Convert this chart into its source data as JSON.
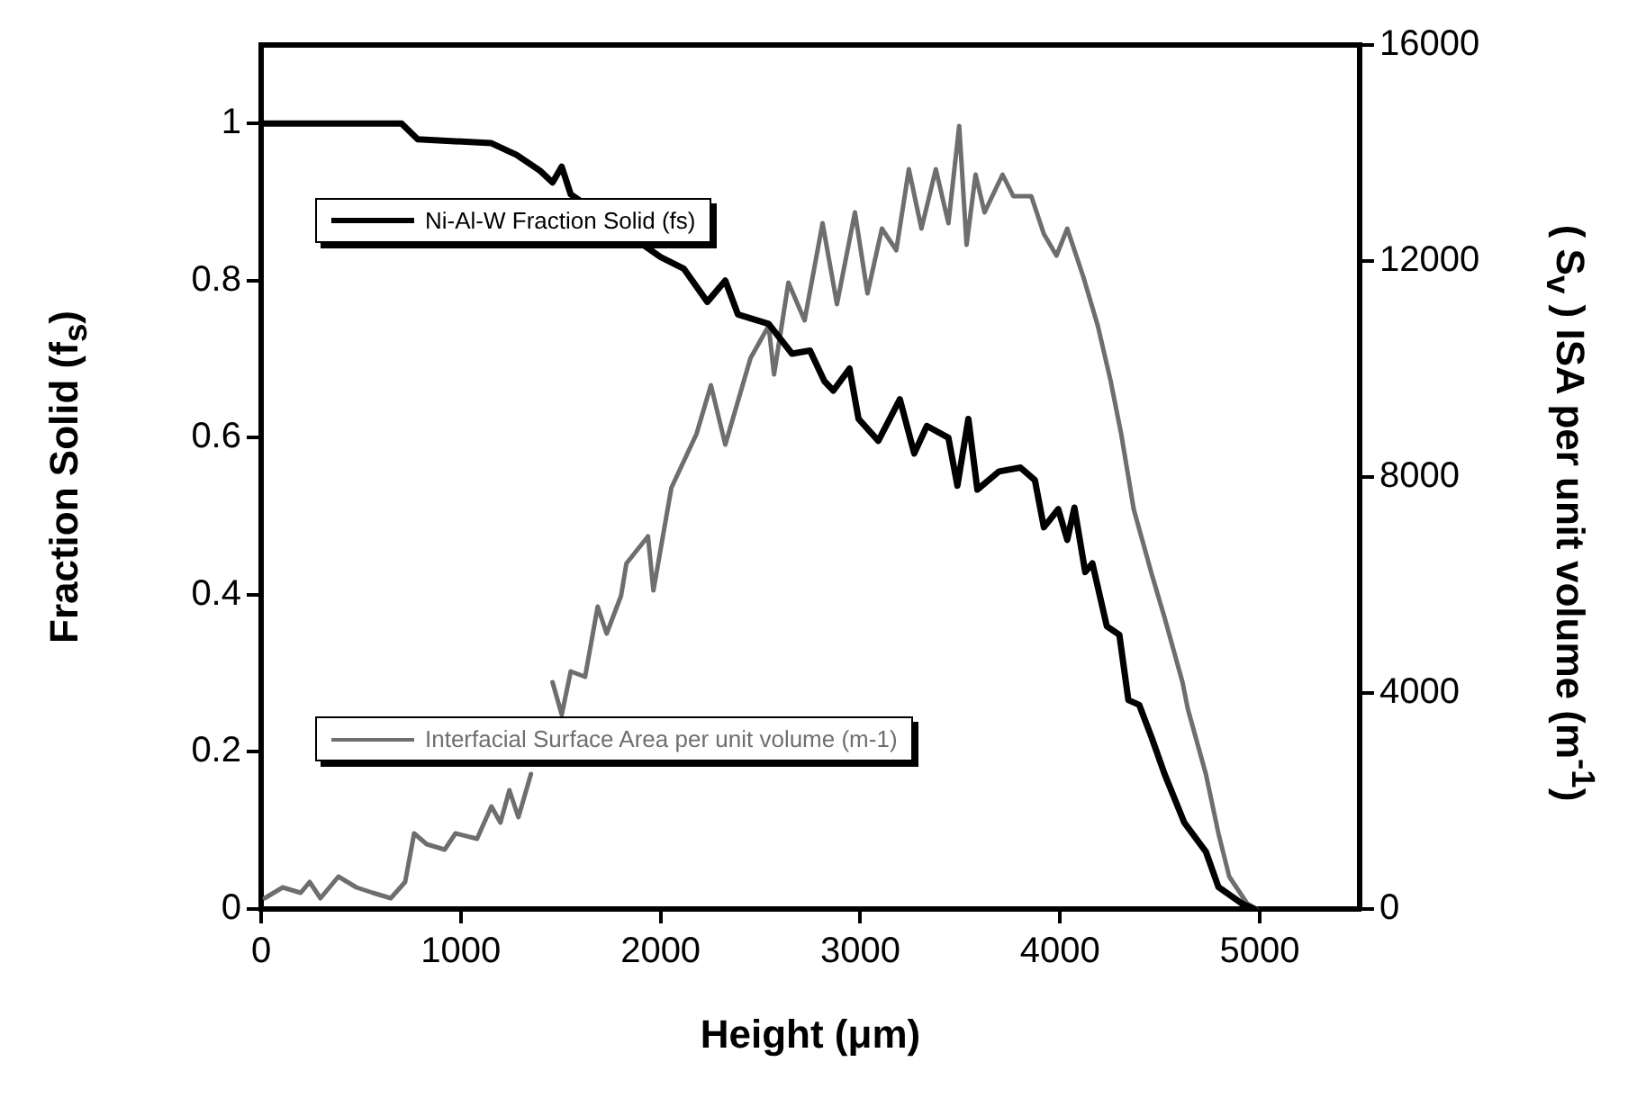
{
  "chart_data": {
    "type": "line",
    "xlabel": "Height (μm)",
    "ylabel": "Fraction Solid (f$_{s}$)",
    "y2label": "( S$_{v}$ ) ISA per unit volume  (m$^{-1}$)",
    "xlim": [
      0,
      5500
    ],
    "xticks": [
      0,
      1000,
      2000,
      3000,
      4000,
      5000
    ],
    "ylim": [
      0,
      1.1
    ],
    "yticks": [
      0,
      0.2,
      0.4,
      0.6,
      0.8,
      1
    ],
    "y2lim": [
      0,
      16000
    ],
    "y2ticks": [
      0,
      4000,
      8000,
      12000,
      16000
    ],
    "grid": false,
    "legend": "left",
    "marker": "none",
    "line_style": "solid",
    "series": [
      {
        "name": "Ni-Al-W Fraction Solid (fs)",
        "color": "#000000",
        "x": [
          18,
          703,
          784,
          1153,
          1279,
          1396,
          1459,
          1505,
          1550,
          2000,
          2117,
          2234,
          2324,
          2387,
          2541,
          2658,
          2748,
          2820,
          2865,
          2946,
          2991,
          3090,
          3198,
          3270,
          3333,
          3441,
          3486,
          3541,
          3586,
          3694,
          3802,
          3874,
          3919,
          3991,
          4036,
          4072,
          4126,
          4162,
          4234,
          4297,
          4342,
          4396,
          4459,
          4523,
          4622,
          4730,
          4793,
          4910,
          4973
        ],
        "values": [
          1.0,
          1.0,
          0.98,
          0.975,
          0.96,
          0.94,
          0.925,
          0.945,
          0.91,
          0.83,
          0.815,
          0.773,
          0.8,
          0.757,
          0.745,
          0.707,
          0.711,
          0.672,
          0.66,
          0.688,
          0.624,
          0.596,
          0.649,
          0.58,
          0.615,
          0.6,
          0.539,
          0.624,
          0.534,
          0.557,
          0.562,
          0.546,
          0.486,
          0.509,
          0.47,
          0.511,
          0.429,
          0.44,
          0.36,
          0.349,
          0.266,
          0.26,
          0.218,
          0.172,
          0.11,
          0.073,
          0.028,
          0.007,
          0
        ]
      },
      {
        "name": "Interfacial Surface Area per unit volume (m-1)",
        "color": "#6e6e6e",
        "axis": "y2",
        "x": [
          18,
          108,
          198,
          243,
          297,
          387,
          477,
          559,
          649,
          721,
          766,
          829,
          919,
          973,
          1081,
          1153,
          1198,
          1243,
          1288,
          1351,
          1423,
          1459,
          1505,
          1550,
          1622,
          1685,
          1730,
          1802,
          1829,
          1937,
          1964,
          2054,
          2180,
          2252,
          2324,
          2450,
          2541,
          2568,
          2640,
          2721,
          2811,
          2883,
          2973,
          3036,
          3108,
          3180,
          3243,
          3306,
          3378,
          3441,
          3495,
          3532,
          3577,
          3622,
          3712,
          3766,
          3856,
          3919,
          3982,
          4036,
          4117,
          4189,
          4252,
          4306,
          4369,
          4459,
          4523,
          4613,
          4640,
          4730,
          4793,
          4847,
          4937,
          4982
        ],
        "values": [
          200,
          400,
          300,
          500,
          200,
          600,
          400,
          300,
          200,
          500,
          1400,
          1200,
          1100,
          1400,
          1300,
          1900,
          1600,
          2200,
          1700,
          2500,
          null,
          4200,
          3600,
          4400,
          4300,
          5600,
          5100,
          5800,
          6400,
          6900,
          5900,
          7800,
          8800,
          9700,
          8600,
          10200,
          10800,
          9900,
          11600,
          10900,
          12700,
          11200,
          12900,
          11400,
          12600,
          12200,
          13700,
          12600,
          13700,
          12700,
          14500,
          12300,
          13600,
          12900,
          13600,
          13200,
          13200,
          12500,
          12100,
          12600,
          11700,
          10800,
          9800,
          8800,
          7400,
          6200,
          5400,
          4200,
          3700,
          2500,
          1400,
          600,
          100,
          0
        ]
      }
    ]
  }
}
